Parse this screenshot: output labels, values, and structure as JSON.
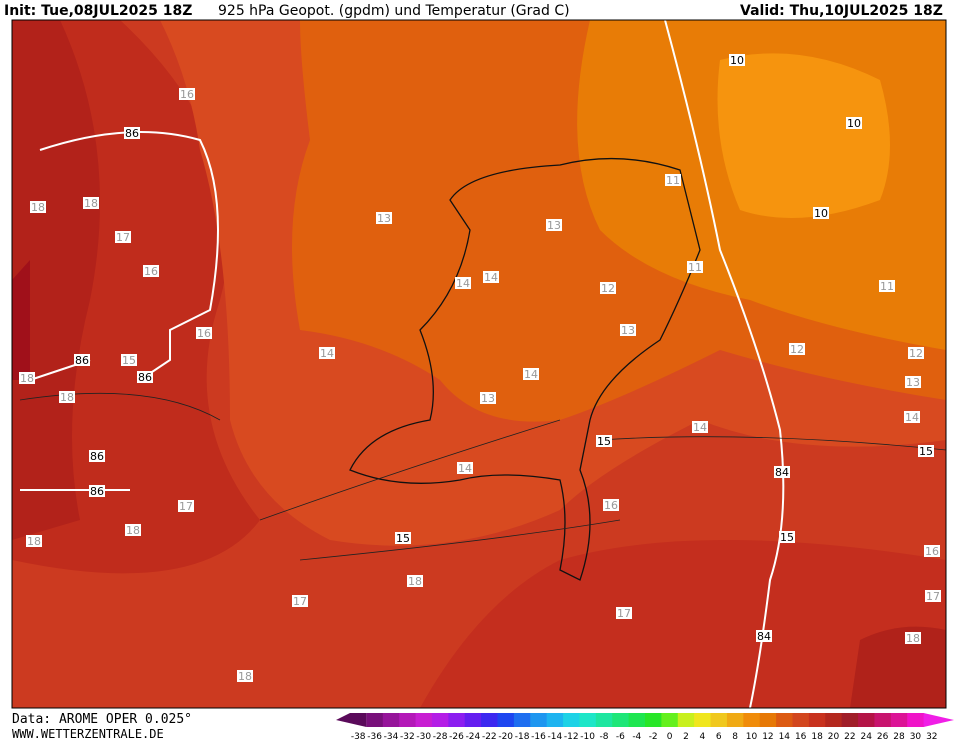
{
  "header": {
    "init": "Init: Tue,08JUL2025 18Z",
    "title": "925 hPa Geopot. (gpdm) und Temperatur (Grad C)",
    "valid": "Valid: Thu,10JUL2025 18Z"
  },
  "map": {
    "temperature_labels": [
      16,
      18,
      18,
      17,
      16,
      16,
      15,
      18,
      18,
      13,
      14,
      14,
      14,
      13,
      12,
      13,
      14,
      13,
      14,
      11,
      11,
      11,
      12,
      12,
      13,
      14,
      14,
      16,
      17,
      18,
      18,
      18,
      17,
      17,
      16,
      17,
      18,
      18
    ],
    "contour_labels": [
      86,
      86,
      86,
      86,
      86,
      10,
      10,
      10,
      15,
      15,
      15,
      15,
      84,
      84
    ]
  },
  "footer": {
    "source": "Data: AROME OPER 0.025°",
    "site": "WWW.WETTERZENTRALE.DE"
  },
  "colorbar": {
    "ticks": [
      -38,
      -36,
      -34,
      -32,
      -30,
      -28,
      -26,
      -24,
      -22,
      -20,
      -18,
      -16,
      -14,
      -12,
      -10,
      -8,
      -6,
      -4,
      -2,
      0,
      2,
      4,
      6,
      8,
      10,
      12,
      14,
      16,
      18,
      20,
      22,
      24,
      26,
      28,
      30,
      32
    ],
    "colors": [
      "#5a0a5a",
      "#78107a",
      "#96149a",
      "#b418b8",
      "#c81ed2",
      "#b41ee6",
      "#8c1ef0",
      "#641ef0",
      "#3c28f0",
      "#1e46f0",
      "#1e6ef0",
      "#1e96f0",
      "#1eb4f0",
      "#1ed2e6",
      "#1ee6c8",
      "#1ee6a0",
      "#1ee678",
      "#1ee650",
      "#28e628",
      "#64f01e",
      "#c8f01e",
      "#f0e61e",
      "#f0c81e",
      "#f0aa14",
      "#f08c0a",
      "#e67806",
      "#dc5a12",
      "#d2461e",
      "#c8321e",
      "#b4281e",
      "#a01e28",
      "#b41446",
      "#c8146e",
      "#dc1496",
      "#f014c8",
      "#f01ee6"
    ]
  }
}
